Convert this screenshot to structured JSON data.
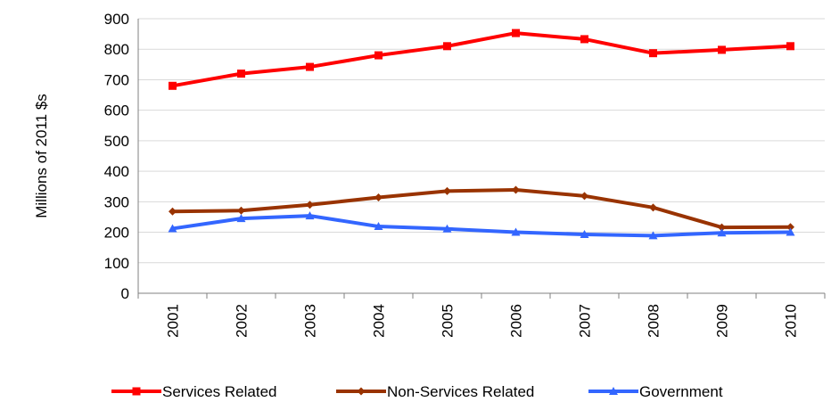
{
  "chart_data": {
    "type": "line",
    "title": "",
    "xlabel": "",
    "ylabel": "Millions of 2011 $s",
    "ylim": [
      0,
      900
    ],
    "yticks": [
      0,
      100,
      200,
      300,
      400,
      500,
      600,
      700,
      800,
      900
    ],
    "grid": "horizontal",
    "legend_position": "bottom",
    "x": [
      "2001",
      "2002",
      "2003",
      "2004",
      "2005",
      "2006",
      "2007",
      "2008",
      "2009",
      "2010"
    ],
    "series": [
      {
        "name": "Services Related",
        "color": "#ff0000",
        "marker": "square",
        "values": [
          680,
          720,
          742,
          780,
          810,
          853,
          833,
          787,
          798,
          810
        ]
      },
      {
        "name": "Non-Services Related",
        "color": "#993300",
        "marker": "diamond",
        "values": [
          268,
          271,
          290,
          314,
          335,
          339,
          319,
          281,
          216,
          217
        ]
      },
      {
        "name": "Government",
        "color": "#3366ff",
        "marker": "triangle",
        "values": [
          212,
          245,
          254,
          219,
          211,
          200,
          193,
          189,
          198,
          200
        ]
      }
    ]
  }
}
